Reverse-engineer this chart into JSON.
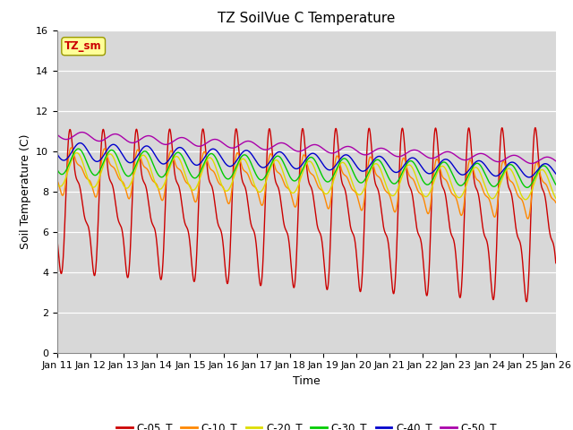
{
  "title": "TZ SoilVue C Temperature",
  "xlabel": "Time",
  "ylabel": "Soil Temperature (C)",
  "ylim": [
    0,
    16
  ],
  "n_days": 15,
  "x_tick_labels": [
    "Jan 11",
    "Jan 12",
    "Jan 13",
    "Jan 14",
    "Jan 15",
    "Jan 16",
    "Jan 17",
    "Jan 18",
    "Jan 19",
    "Jan 20",
    "Jan 21",
    "Jan 22",
    "Jan 23",
    "Jan 24",
    "Jan 25",
    "Jan 26"
  ],
  "x_tick_positions": [
    0,
    1,
    2,
    3,
    4,
    5,
    6,
    7,
    8,
    9,
    10,
    11,
    12,
    13,
    14,
    15
  ],
  "station_label": "TZ_sm",
  "series": [
    {
      "name": "C-05_T",
      "color": "#cc0000",
      "mean_start": 7.5,
      "mean_end": 6.8,
      "amp_start": 4.5,
      "amp_end": 5.5,
      "phase": 0.0,
      "sharpness": 4.0
    },
    {
      "name": "C-10_T",
      "color": "#ff8800",
      "mean_start": 9.0,
      "mean_end": 8.0,
      "amp_start": 1.5,
      "amp_end": 1.8,
      "phase": 0.25,
      "sharpness": 2.0
    },
    {
      "name": "C-20_T",
      "color": "#dddd00",
      "mean_start": 9.1,
      "mean_end": 8.3,
      "amp_start": 0.85,
      "amp_end": 0.75,
      "phase": 0.55,
      "sharpness": 1.0
    },
    {
      "name": "C-30_T",
      "color": "#00cc00",
      "mean_start": 9.5,
      "mean_end": 8.7,
      "amp_start": 0.65,
      "amp_end": 0.55,
      "phase": 0.85,
      "sharpness": 1.0
    },
    {
      "name": "C-40_T",
      "color": "#0000cc",
      "mean_start": 10.0,
      "mean_end": 9.0,
      "amp_start": 0.45,
      "amp_end": 0.35,
      "phase": 1.2,
      "sharpness": 1.0
    },
    {
      "name": "C-50_T",
      "color": "#aa00aa",
      "mean_start": 10.8,
      "mean_end": 9.5,
      "amp_start": 0.2,
      "amp_end": 0.18,
      "phase": 1.6,
      "sharpness": 1.0
    }
  ],
  "bg_color": "#d8d8d8",
  "fig_bg_color": "#ffffff",
  "title_fontsize": 11,
  "axis_label_fontsize": 9,
  "tick_fontsize": 8,
  "legend_fontsize": 8.5,
  "line_width": 1.0
}
